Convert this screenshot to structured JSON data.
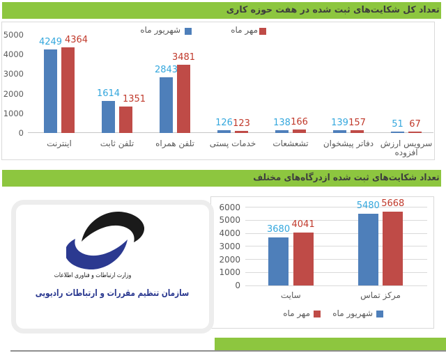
{
  "colors": {
    "header_green": "#8dc63f",
    "bar_blue": "#4e7fba",
    "bar_red": "#bf4b47",
    "value_label_blue": "#34a7dd",
    "value_label_red": "#c0392b",
    "logo_navy": "#2b3990",
    "logo_black": "#1a1a1a"
  },
  "chart_data": [
    {
      "type": "bar",
      "title": "تعداد کل شکایت‌های ثبت شده در هفت حوزه کاری",
      "categories": [
        "اینترنت",
        "تلفن ثابت",
        "تلفن همراه",
        "خدمات پستی",
        "تشعشعات",
        "دفاتر پیشخوان",
        "سرویس ارزش افزوده"
      ],
      "series": [
        {
          "name": "شهریور ماه",
          "color": "#4e7fba",
          "values": [
            4249,
            1614,
            2843,
            126,
            138,
            139,
            51
          ]
        },
        {
          "name": "مهر ماه",
          "color": "#bf4b47",
          "values": [
            4364,
            1351,
            3481,
            123,
            166,
            157,
            67
          ]
        }
      ],
      "ylim": [
        0,
        5000
      ],
      "ytick": 1000,
      "grid": false,
      "legend_position": "top"
    },
    {
      "type": "bar",
      "title": "تعداد شکایت‌های ثبت شده ازدرگاه‌های مختلف",
      "categories": [
        "سایت",
        "مرکز تماس"
      ],
      "series": [
        {
          "name": "شهریور ماه",
          "color": "#4e7fba",
          "values": [
            3680,
            5480
          ]
        },
        {
          "name": "مهر ماه",
          "color": "#bf4b47",
          "values": [
            4041,
            5668
          ]
        }
      ],
      "ylim": [
        0,
        6000
      ],
      "ytick": 1000,
      "grid": true,
      "legend_position": "bottom"
    }
  ],
  "logo": {
    "ministry_line": "وزارت ارتباطات و فناوری اطلاعات",
    "organization_line": "سازمان تنظیم مقررات و ارتباطات رادیویی"
  }
}
